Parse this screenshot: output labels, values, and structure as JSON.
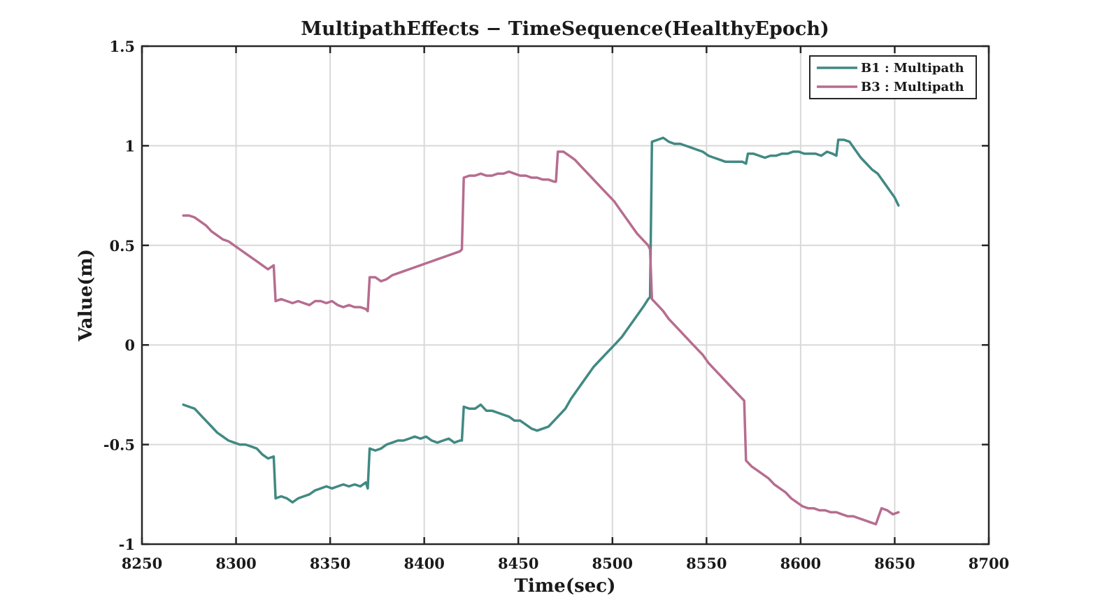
{
  "chart_data": {
    "type": "line",
    "title": "MultipathEffects − TimeSequence(HealthyEpoch)",
    "xlabel": "Time(sec)",
    "ylabel": "Value(m)",
    "xlim": [
      8250,
      8700
    ],
    "ylim": [
      -1,
      1.5
    ],
    "xticks": [
      8250,
      8300,
      8350,
      8400,
      8450,
      8500,
      8550,
      8600,
      8650,
      8700
    ],
    "yticks": [
      -1,
      -0.5,
      0,
      0.5,
      1,
      1.5
    ],
    "xtick_labels": [
      "8250",
      "8300",
      "8350",
      "8400",
      "8450",
      "8500",
      "8550",
      "8600",
      "8650",
      "8700"
    ],
    "ytick_labels": [
      "-1",
      "-0.5",
      "0",
      "0.5",
      "1",
      "1.5"
    ],
    "grid": true,
    "legend_position": "top-right",
    "series": [
      {
        "name": "B1 : Multipath",
        "color": "#418983",
        "x": [
          8272,
          8275,
          8278,
          8281,
          8284,
          8287,
          8290,
          8293,
          8296,
          8299,
          8302,
          8305,
          8308,
          8311,
          8314,
          8317,
          8320,
          8321,
          8324,
          8327,
          8330,
          8333,
          8336,
          8339,
          8342,
          8345,
          8348,
          8351,
          8354,
          8357,
          8360,
          8363,
          8366,
          8369,
          8370,
          8371,
          8374,
          8377,
          8380,
          8383,
          8386,
          8389,
          8392,
          8395,
          8398,
          8401,
          8404,
          8407,
          8410,
          8413,
          8416,
          8419,
          8420,
          8421,
          8424,
          8427,
          8430,
          8433,
          8436,
          8439,
          8442,
          8445,
          8448,
          8451,
          8454,
          8457,
          8460,
          8463,
          8466,
          8469,
          8472,
          8475,
          8478,
          8481,
          8484,
          8487,
          8490,
          8493,
          8496,
          8499,
          8502,
          8505,
          8508,
          8511,
          8514,
          8517,
          8519,
          8520,
          8521,
          8524,
          8527,
          8530,
          8533,
          8536,
          8539,
          8542,
          8545,
          8548,
          8551,
          8554,
          8557,
          8560,
          8563,
          8566,
          8569,
          8571,
          8572,
          8575,
          8578,
          8581,
          8584,
          8587,
          8590,
          8593,
          8596,
          8599,
          8602,
          8605,
          8608,
          8611,
          8614,
          8617,
          8619,
          8620,
          8623,
          8626,
          8629,
          8632,
          8635,
          8638,
          8641,
          8644,
          8647,
          8650,
          8652
        ],
        "y": [
          -0.3,
          -0.31,
          -0.32,
          -0.35,
          -0.38,
          -0.41,
          -0.44,
          -0.46,
          -0.48,
          -0.49,
          -0.5,
          -0.5,
          -0.51,
          -0.52,
          -0.55,
          -0.57,
          -0.56,
          -0.77,
          -0.76,
          -0.77,
          -0.79,
          -0.77,
          -0.76,
          -0.75,
          -0.73,
          -0.72,
          -0.71,
          -0.72,
          -0.71,
          -0.7,
          -0.71,
          -0.7,
          -0.71,
          -0.69,
          -0.72,
          -0.52,
          -0.53,
          -0.52,
          -0.5,
          -0.49,
          -0.48,
          -0.48,
          -0.47,
          -0.46,
          -0.47,
          -0.46,
          -0.48,
          -0.49,
          -0.48,
          -0.47,
          -0.49,
          -0.48,
          -0.48,
          -0.31,
          -0.32,
          -0.32,
          -0.3,
          -0.33,
          -0.33,
          -0.34,
          -0.35,
          -0.36,
          -0.38,
          -0.38,
          -0.4,
          -0.42,
          -0.43,
          -0.42,
          -0.41,
          -0.38,
          -0.35,
          -0.32,
          -0.27,
          -0.23,
          -0.19,
          -0.15,
          -0.11,
          -0.08,
          -0.05,
          -0.02,
          0.01,
          0.04,
          0.08,
          0.12,
          0.16,
          0.2,
          0.23,
          0.24,
          1.02,
          1.03,
          1.04,
          1.02,
          1.01,
          1.01,
          1.0,
          0.99,
          0.98,
          0.97,
          0.95,
          0.94,
          0.93,
          0.92,
          0.92,
          0.92,
          0.92,
          0.91,
          0.96,
          0.96,
          0.95,
          0.94,
          0.95,
          0.95,
          0.96,
          0.96,
          0.97,
          0.97,
          0.96,
          0.96,
          0.96,
          0.95,
          0.97,
          0.96,
          0.95,
          1.03,
          1.03,
          1.02,
          0.98,
          0.94,
          0.91,
          0.88,
          0.86,
          0.82,
          0.78,
          0.74,
          0.7
        ]
      },
      {
        "name": "B3 : Multipath",
        "color": "#b66d8f",
        "x": [
          8272,
          8275,
          8278,
          8281,
          8284,
          8287,
          8290,
          8293,
          8296,
          8299,
          8302,
          8305,
          8308,
          8311,
          8314,
          8317,
          8320,
          8321,
          8324,
          8327,
          8330,
          8333,
          8336,
          8339,
          8342,
          8345,
          8348,
          8351,
          8354,
          8357,
          8360,
          8363,
          8366,
          8369,
          8370,
          8371,
          8374,
          8377,
          8380,
          8383,
          8386,
          8389,
          8392,
          8395,
          8398,
          8401,
          8404,
          8407,
          8410,
          8413,
          8416,
          8419,
          8420,
          8421,
          8424,
          8427,
          8430,
          8433,
          8436,
          8439,
          8442,
          8445,
          8448,
          8451,
          8454,
          8457,
          8460,
          8463,
          8466,
          8469,
          8470,
          8471,
          8474,
          8477,
          8480,
          8483,
          8486,
          8489,
          8492,
          8495,
          8498,
          8501,
          8504,
          8507,
          8510,
          8513,
          8516,
          8519,
          8520,
          8521,
          8524,
          8527,
          8530,
          8533,
          8536,
          8539,
          8542,
          8545,
          8548,
          8551,
          8554,
          8557,
          8560,
          8563,
          8566,
          8569,
          8570,
          8571,
          8574,
          8577,
          8580,
          8583,
          8586,
          8589,
          8592,
          8595,
          8598,
          8601,
          8604,
          8607,
          8610,
          8613,
          8616,
          8619,
          8622,
          8625,
          8628,
          8631,
          8634,
          8637,
          8640,
          8643,
          8646,
          8649,
          8652
        ],
        "y": [
          0.65,
          0.65,
          0.64,
          0.62,
          0.6,
          0.57,
          0.55,
          0.53,
          0.52,
          0.5,
          0.48,
          0.46,
          0.44,
          0.42,
          0.4,
          0.38,
          0.4,
          0.22,
          0.23,
          0.22,
          0.21,
          0.22,
          0.21,
          0.2,
          0.22,
          0.22,
          0.21,
          0.22,
          0.2,
          0.19,
          0.2,
          0.19,
          0.19,
          0.18,
          0.17,
          0.34,
          0.34,
          0.32,
          0.33,
          0.35,
          0.36,
          0.37,
          0.38,
          0.39,
          0.4,
          0.41,
          0.42,
          0.43,
          0.44,
          0.45,
          0.46,
          0.47,
          0.48,
          0.84,
          0.85,
          0.85,
          0.86,
          0.85,
          0.85,
          0.86,
          0.86,
          0.87,
          0.86,
          0.85,
          0.85,
          0.84,
          0.84,
          0.83,
          0.83,
          0.82,
          0.82,
          0.97,
          0.97,
          0.95,
          0.93,
          0.9,
          0.87,
          0.84,
          0.81,
          0.78,
          0.75,
          0.72,
          0.68,
          0.64,
          0.6,
          0.56,
          0.53,
          0.5,
          0.48,
          0.23,
          0.2,
          0.17,
          0.13,
          0.1,
          0.07,
          0.04,
          0.01,
          -0.02,
          -0.05,
          -0.09,
          -0.12,
          -0.15,
          -0.18,
          -0.21,
          -0.24,
          -0.27,
          -0.28,
          -0.58,
          -0.61,
          -0.63,
          -0.65,
          -0.67,
          -0.7,
          -0.72,
          -0.74,
          -0.77,
          -0.79,
          -0.81,
          -0.82,
          -0.82,
          -0.83,
          -0.83,
          -0.84,
          -0.84,
          -0.85,
          -0.86,
          -0.86,
          -0.87,
          -0.88,
          -0.89,
          -0.9,
          -0.82,
          -0.83,
          -0.85,
          -0.84
        ]
      }
    ]
  }
}
